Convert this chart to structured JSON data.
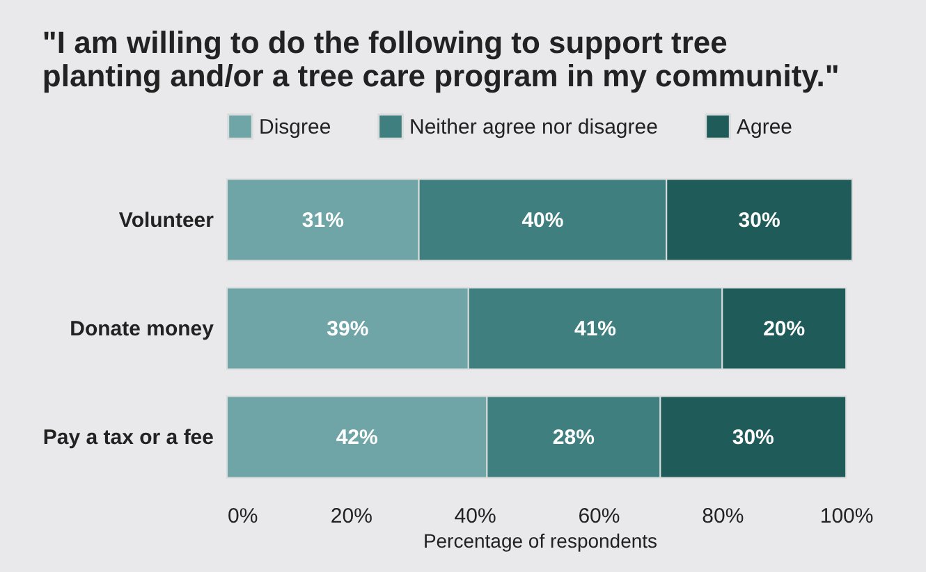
{
  "chart_data": {
    "type": "bar",
    "orientation": "horizontal",
    "stacked": true,
    "title": "\"I am willing to do the following to support tree planting and/or a tree care program in my community.\"",
    "xlabel": "Percentage of respondents",
    "categories": [
      "Volunteer",
      "Donate money",
      "Pay a tax or a fee"
    ],
    "series": [
      {
        "name": "Disgree",
        "color": "#6fa5a6",
        "values": [
          31,
          39,
          42
        ],
        "value_labels": [
          "31%",
          "39%",
          "42%"
        ]
      },
      {
        "name": "Neither agree nor disagree",
        "color": "#3f7f80",
        "values": [
          40,
          41,
          28
        ],
        "value_labels": [
          "40%",
          "41%",
          "28%"
        ]
      },
      {
        "name": "Agree",
        "color": "#1f5b59",
        "values": [
          30,
          20,
          30
        ],
        "value_labels": [
          "30%",
          "20%",
          "30%"
        ]
      }
    ],
    "xlim": [
      0,
      101
    ],
    "xticks": [
      {
        "value": 0,
        "label": "0%"
      },
      {
        "value": 20,
        "label": "20%"
      },
      {
        "value": 40,
        "label": "40%"
      },
      {
        "value": 60,
        "label": "60%"
      },
      {
        "value": 80,
        "label": "80%"
      },
      {
        "value": 100,
        "label": "100%"
      }
    ],
    "grid": false,
    "legend": "top"
  }
}
